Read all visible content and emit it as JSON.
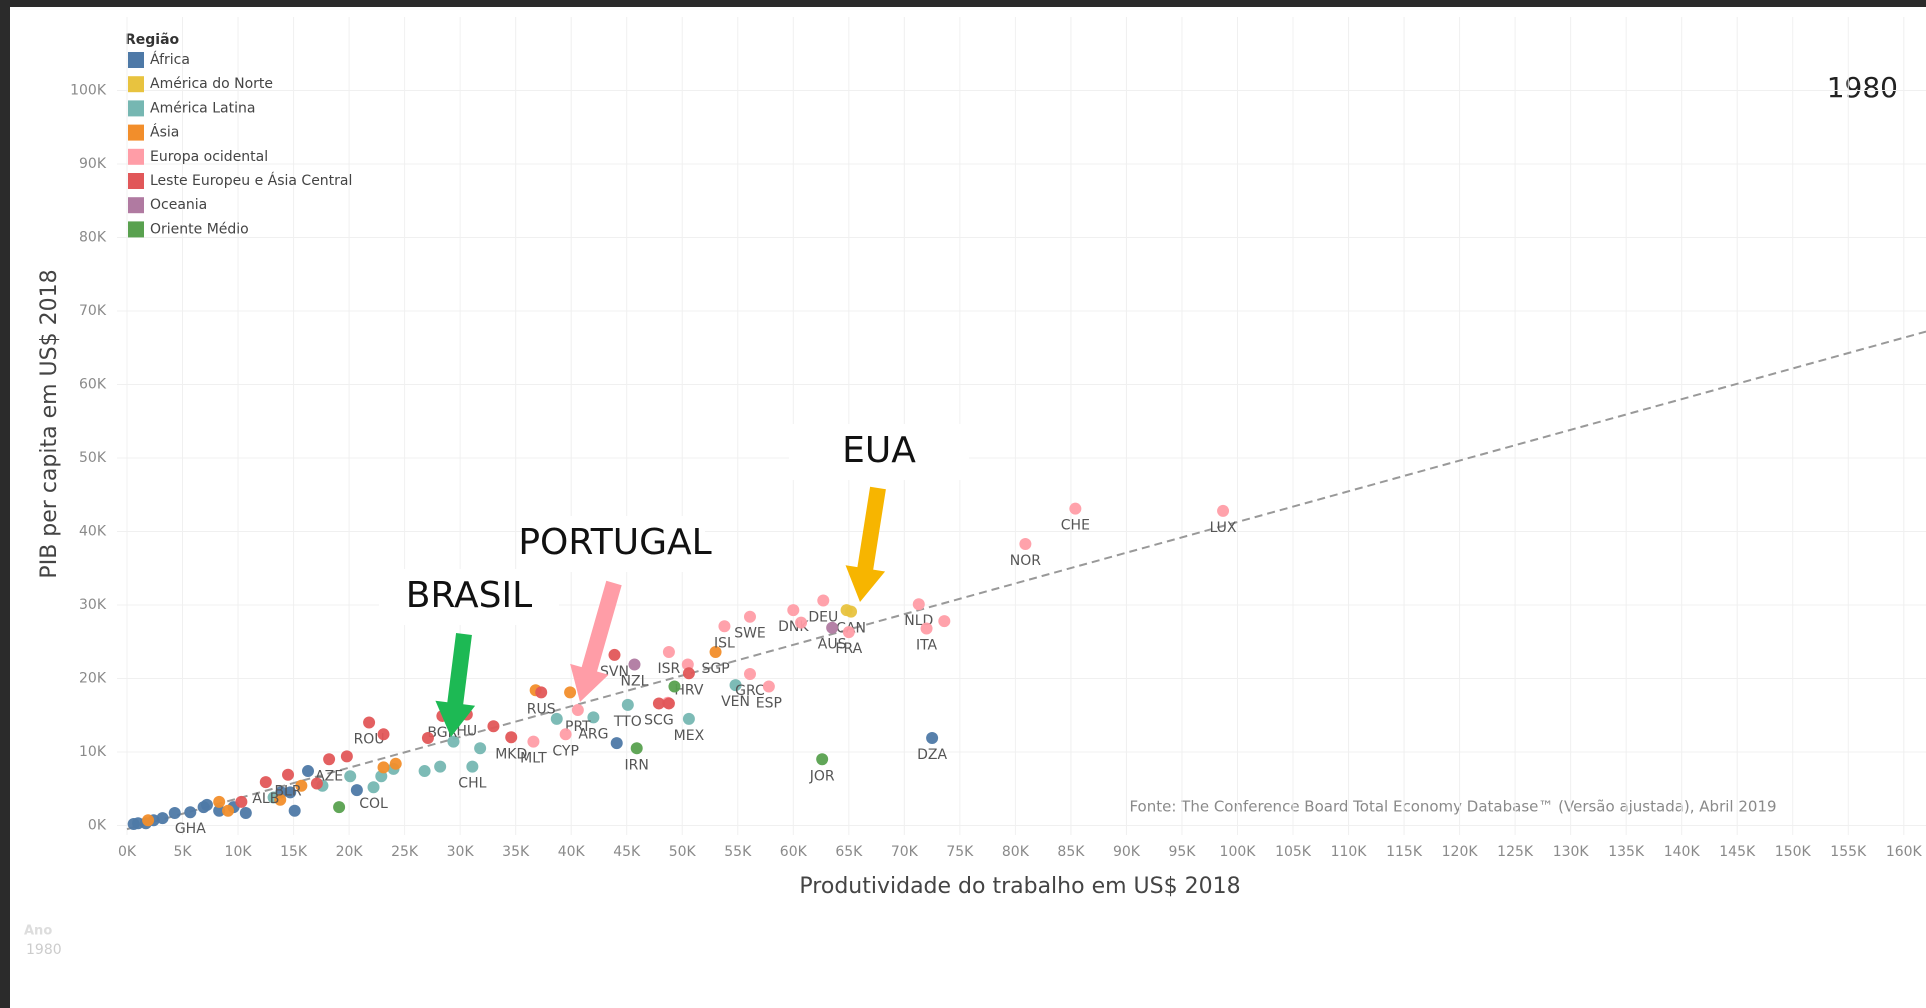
{
  "chart_data": {
    "type": "scatter",
    "x_label": "Produtividade do trabalho em US$ 2018",
    "y_label": "PIB per capita em US$ 2018",
    "legend_title": "Região",
    "legend": "top-left",
    "grid": true,
    "year": "1980",
    "source": "Fonte: The Conference Board Total Economy Database™ (Versão ajustada), Abril 2019",
    "filter": {
      "label": "Ano",
      "value": "1980"
    },
    "annotations": [
      {
        "text": "BRASIL"
      },
      {
        "text": "PORTUGAL"
      },
      {
        "text": "EUA"
      }
    ],
    "xlim": [
      -0.9,
      162
    ],
    "ylim": [
      -1.3,
      110
    ],
    "xticks": [
      {
        "value": 0,
        "label": "0K"
      },
      {
        "value": 5,
        "label": "5K"
      },
      {
        "value": 10,
        "label": "10K"
      },
      {
        "value": 15,
        "label": "15K"
      },
      {
        "value": 20,
        "label": "20K"
      },
      {
        "value": 25,
        "label": "25K"
      },
      {
        "value": 30,
        "label": "30K"
      },
      {
        "value": 35,
        "label": "35K"
      },
      {
        "value": 40,
        "label": "40K"
      },
      {
        "value": 45,
        "label": "45K"
      },
      {
        "value": 50,
        "label": "50K"
      },
      {
        "value": 55,
        "label": "55K"
      },
      {
        "value": 60,
        "label": "60K"
      },
      {
        "value": 65,
        "label": "65K"
      },
      {
        "value": 70,
        "label": "70K"
      },
      {
        "value": 75,
        "label": "75K"
      },
      {
        "value": 80,
        "label": "80K"
      },
      {
        "value": 85,
        "label": "85K"
      },
      {
        "value": 90,
        "label": "90K"
      },
      {
        "value": 95,
        "label": "95K"
      },
      {
        "value": 100,
        "label": "100K"
      },
      {
        "value": 105,
        "label": "105K"
      },
      {
        "value": 110,
        "label": "110K"
      },
      {
        "value": 115,
        "label": "115K"
      },
      {
        "value": 120,
        "label": "120K"
      },
      {
        "value": 125,
        "label": "125K"
      },
      {
        "value": 130,
        "label": "130K"
      },
      {
        "value": 135,
        "label": "135K"
      },
      {
        "value": 140,
        "label": "140K"
      },
      {
        "value": 145,
        "label": "145K"
      },
      {
        "value": 150,
        "label": "150K"
      },
      {
        "value": 155,
        "label": "155K"
      },
      {
        "value": 160,
        "label": "160K"
      }
    ],
    "yticks": [
      {
        "value": 0,
        "label": "0K"
      },
      {
        "value": 10,
        "label": "10K"
      },
      {
        "value": 20,
        "label": "20K"
      },
      {
        "value": 30,
        "label": "30K"
      },
      {
        "value": 40,
        "label": "40K"
      },
      {
        "value": 50,
        "label": "50K"
      },
      {
        "value": 60,
        "label": "60K"
      },
      {
        "value": 70,
        "label": "70K"
      },
      {
        "value": 80,
        "label": "80K"
      },
      {
        "value": 90,
        "label": "90K"
      },
      {
        "value": 100,
        "label": "100K"
      }
    ],
    "trendline": {
      "x": [
        0,
        162
      ],
      "values": [
        -0.5,
        67.2
      ]
    },
    "series": [
      {
        "name": "África",
        "color": "#4e79a7",
        "x": [
          5.7,
          72.5,
          0.6,
          1.0,
          1.7,
          2.4,
          3.2,
          4.3,
          6.9,
          7.2,
          8.3,
          9.6,
          10.7,
          13.9,
          14.7,
          15.1,
          16.3,
          20.7,
          44.1
        ],
        "values": [
          1.8,
          11.9,
          0.2,
          0.3,
          0.3,
          0.7,
          1.0,
          1.7,
          2.5,
          2.8,
          2.0,
          2.5,
          1.7,
          4.5,
          4.5,
          2.0,
          7.4,
          4.8,
          11.2
        ],
        "labels": [
          "GHA",
          "DZA",
          null,
          null,
          null,
          null,
          null,
          null,
          null,
          null,
          null,
          null,
          null,
          null,
          null,
          null,
          null,
          null,
          null
        ]
      },
      {
        "name": "América do Norte",
        "color": "#e8c33f",
        "x": [
          65.2,
          64.8
        ],
        "values": [
          29.1,
          29.3
        ],
        "labels": [
          "CAN",
          null
        ]
      },
      {
        "name": "América Latina",
        "color": "#76b7b2",
        "x": [
          22.2,
          31.1,
          29.4,
          42.0,
          45.1,
          50.6,
          54.8,
          13.2,
          17.6,
          20.1,
          22.9,
          24.0,
          26.8,
          28.2,
          31.8,
          38.7
        ],
        "values": [
          5.2,
          8.0,
          11.4,
          14.7,
          16.4,
          14.5,
          19.1,
          3.8,
          5.4,
          6.7,
          6.7,
          7.7,
          7.4,
          8.0,
          10.5,
          14.5
        ],
        "labels": [
          "COL",
          "CHL",
          null,
          "ARG",
          "TTO",
          "MEX",
          "VEN",
          null,
          null,
          null,
          null,
          null,
          null,
          null,
          null,
          null
        ]
      },
      {
        "name": "Ásia",
        "color": "#f28e2b",
        "x": [
          53.0,
          1.9,
          8.3,
          9.1,
          13.8,
          15.7,
          23.1,
          24.2,
          36.8,
          39.9
        ],
        "values": [
          23.6,
          0.7,
          3.2,
          2.0,
          3.5,
          5.4,
          7.9,
          8.4,
          18.4,
          18.1
        ],
        "labels": [
          "SGP",
          null,
          null,
          null,
          null,
          null,
          null,
          null,
          null,
          null
        ]
      },
      {
        "name": "Europa ocidental",
        "color": "#ff9da7",
        "x": [
          85.4,
          98.7,
          80.9,
          71.3,
          72.0,
          62.7,
          65.0,
          60.0,
          56.1,
          53.8,
          56.1,
          57.8,
          48.8,
          40.6,
          39.5,
          36.6,
          48.7,
          50.5,
          60.7,
          73.6
        ],
        "values": [
          43.1,
          42.8,
          38.3,
          30.1,
          26.8,
          30.6,
          26.3,
          29.3,
          28.4,
          27.1,
          20.6,
          18.9,
          23.6,
          15.7,
          12.4,
          11.4,
          16.7,
          21.9,
          27.6,
          27.8
        ],
        "labels": [
          "CHE",
          "LUX",
          "NOR",
          "NLD",
          "ITA",
          "DEU",
          "FRA",
          "DNK",
          "SWE",
          "ISL",
          "GRC",
          "ESP",
          "ISR",
          "PRT",
          "CYP",
          "MLT",
          null,
          null,
          null,
          null
        ]
      },
      {
        "name": "Leste Europeu e Ásia Central",
        "color": "#e15759",
        "x": [
          37.3,
          43.9,
          50.6,
          47.9,
          34.6,
          28.4,
          30.6,
          21.8,
          18.2,
          14.5,
          12.5,
          19.8,
          23.1,
          27.1,
          33.0,
          48.8,
          10.3,
          17.1
        ],
        "values": [
          18.1,
          23.2,
          20.7,
          16.6,
          12.0,
          14.9,
          15.1,
          14.0,
          9.0,
          6.9,
          5.9,
          9.4,
          12.4,
          11.9,
          13.5,
          16.6,
          3.2,
          5.7
        ],
        "labels": [
          "RUS",
          "SVN",
          "HRV",
          "SCG",
          "MKD",
          "BGR",
          "HU",
          "ROU",
          "AZE",
          "BLR",
          "ALB",
          null,
          null,
          null,
          null,
          null,
          null,
          null
        ]
      },
      {
        "name": "Oceania",
        "color": "#b07aa1",
        "x": [
          63.5,
          45.7
        ],
        "values": [
          26.9,
          21.9
        ],
        "labels": [
          "AUS",
          "NZL"
        ]
      },
      {
        "name": "Oriente Médio",
        "color": "#59a14f",
        "x": [
          45.9,
          62.6,
          19.1,
          49.3
        ],
        "values": [
          10.5,
          9.0,
          2.5,
          18.9
        ],
        "labels": [
          "IRN",
          "JOR",
          null,
          null
        ]
      }
    ]
  }
}
